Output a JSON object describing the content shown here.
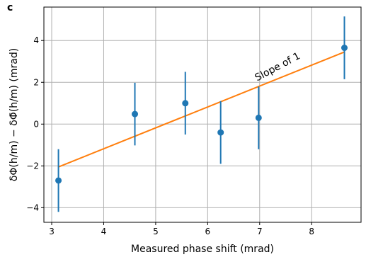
{
  "panel_label": "c",
  "chart_data": {
    "type": "scatter",
    "xlabel": "Measured phase shift (mrad)",
    "ylabel": "δΦ(h/m) − δΦ̄(h/m) (mrad)",
    "xlim": [
      2.85,
      8.95
    ],
    "ylim": [
      -4.7,
      5.6
    ],
    "x_ticks": [
      3,
      4,
      5,
      6,
      7,
      8
    ],
    "y_ticks": [
      -4,
      -2,
      0,
      2,
      4
    ],
    "grid": true,
    "colors": {
      "points": "#1f77b4",
      "fit_line": "#ff7f0e"
    },
    "series": [
      {
        "points": [
          {
            "x": 3.13,
            "y": -2.7,
            "err": 1.5
          },
          {
            "x": 4.6,
            "y": 0.48,
            "err": 1.5
          },
          {
            "x": 5.57,
            "y": 1.0,
            "err": 1.5
          },
          {
            "x": 6.25,
            "y": -0.4,
            "err": 1.5
          },
          {
            "x": 6.98,
            "y": 0.3,
            "err": 1.5
          },
          {
            "x": 8.63,
            "y": 3.65,
            "err": 1.5
          }
        ]
      }
    ],
    "fit_line": {
      "x": [
        3.13,
        8.63
      ],
      "y": [
        -2.05,
        3.45
      ]
    },
    "annotation": {
      "text": "Slope of 1",
      "x": 6.95,
      "y": 2.05,
      "angle_deg": -28
    }
  }
}
